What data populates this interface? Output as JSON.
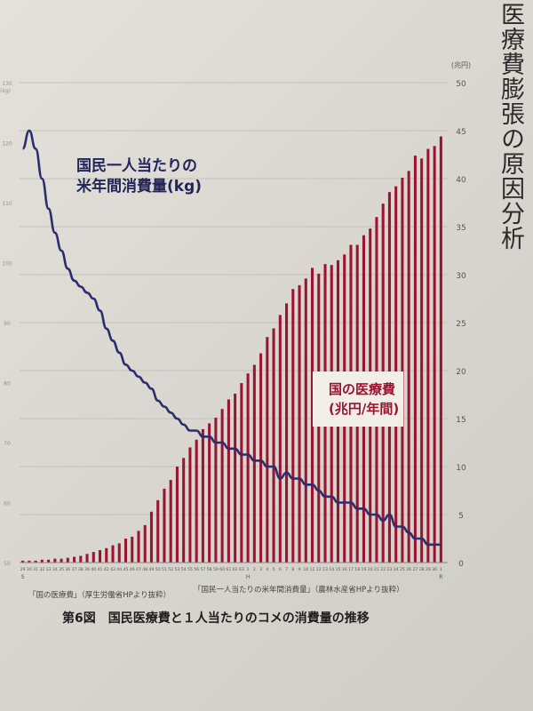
{
  "page": {
    "side_title": "医療費膨張の原因分析",
    "source_medical": "「国の医療費」（厚生労働省HPより抜粋）",
    "source_rice": "「国民一人当たりの米年間消費量」（農林水産省HPより抜粋）",
    "caption": "第6図　国民医療費と１人当たりのコメの消費量の推移"
  },
  "chart_data": {
    "type": "bar",
    "title": "",
    "right_axis": {
      "unit": "(兆円)",
      "ylim": [
        0,
        50
      ],
      "ticks": [
        0,
        5,
        10,
        15,
        20,
        25,
        30,
        35,
        40,
        45,
        50
      ]
    },
    "left_axis": {
      "unit": "(kg)",
      "ylim": [
        50,
        130
      ],
      "ticks": [
        50,
        60,
        70,
        80,
        90,
        100,
        110,
        120,
        130
      ]
    },
    "era_labels": [
      "S",
      "H",
      "R"
    ],
    "x": [
      "29",
      "30",
      "31",
      "32",
      "33",
      "34",
      "35",
      "36",
      "37",
      "38",
      "39",
      "40",
      "41",
      "42",
      "43",
      "44",
      "45",
      "46",
      "47",
      "48",
      "49",
      "50",
      "51",
      "52",
      "53",
      "54",
      "55",
      "56",
      "57",
      "58",
      "59",
      "60",
      "61",
      "62",
      "63",
      "1",
      "2",
      "3",
      "4",
      "5",
      "6",
      "7",
      "8",
      "9",
      "10",
      "11",
      "12",
      "13",
      "14",
      "15",
      "16",
      "17",
      "18",
      "19",
      "20",
      "21",
      "22",
      "23",
      "24",
      "25",
      "26",
      "27",
      "28",
      "29",
      "30",
      "1"
    ],
    "series": [
      {
        "name": "国の医療費\n(兆円/年間)",
        "kind": "bar",
        "axis": "right",
        "color": "#9c1330",
        "values": [
          0.2,
          0.2,
          0.2,
          0.3,
          0.3,
          0.4,
          0.4,
          0.5,
          0.6,
          0.7,
          0.9,
          1.1,
          1.3,
          1.5,
          1.8,
          2.0,
          2.5,
          2.7,
          3.3,
          3.9,
          5.3,
          6.5,
          7.7,
          8.6,
          10.0,
          10.9,
          12.0,
          12.8,
          13.9,
          14.5,
          15.1,
          16.0,
          17.0,
          17.6,
          18.7,
          19.7,
          20.6,
          21.8,
          23.5,
          24.4,
          25.8,
          27.0,
          28.5,
          28.9,
          29.6,
          30.7,
          30.1,
          31.1,
          31.0,
          31.5,
          32.1,
          33.1,
          33.1,
          34.1,
          34.8,
          36.0,
          37.4,
          38.6,
          39.2,
          40.1,
          40.8,
          42.4,
          42.1,
          43.1,
          43.4,
          44.4
        ]
      },
      {
        "name": "国民一人当たりの\n米年間消費量(kg)",
        "kind": "line",
        "axis": "left",
        "color": "#2b2d6e",
        "values": [
          119,
          122,
          119,
          114,
          109,
          105,
          102,
          99,
          97,
          96,
          95,
          94,
          92,
          89,
          87,
          85,
          83,
          82,
          81,
          80,
          79,
          77,
          76,
          75,
          74,
          73,
          72,
          72,
          71,
          71,
          70,
          70,
          69,
          69,
          68,
          68,
          67,
          67,
          66,
          66,
          64,
          65,
          64,
          64,
          63,
          63,
          62,
          61,
          61,
          60,
          60,
          60,
          59,
          59,
          58,
          58,
          57,
          58,
          56,
          56,
          55,
          54,
          54,
          53,
          53,
          53
        ]
      }
    ],
    "annotations": [
      {
        "text": "国民一人当たりの\n米年間消費量(kg)",
        "series": "line"
      },
      {
        "text": "国の医療費\n(兆円/年間)",
        "series": "bar"
      }
    ]
  }
}
